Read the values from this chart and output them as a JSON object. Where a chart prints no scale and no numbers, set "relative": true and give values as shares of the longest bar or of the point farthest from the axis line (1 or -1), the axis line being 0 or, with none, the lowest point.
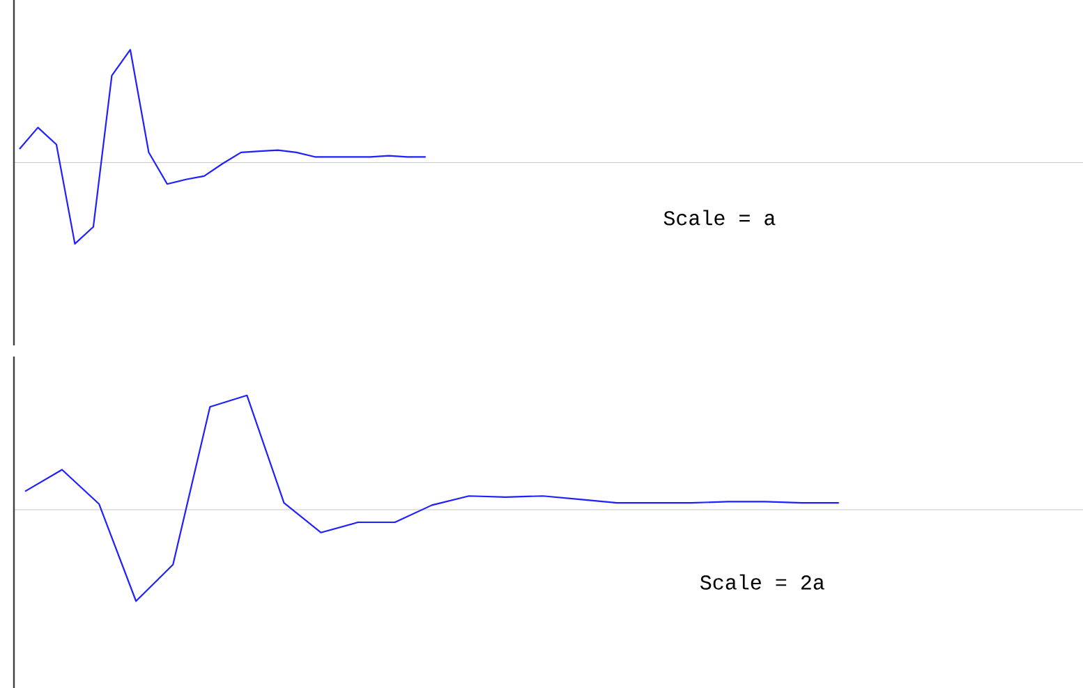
{
  "chart_data": [
    {
      "type": "line",
      "relative": true,
      "categories": [
        null,
        null,
        null,
        null,
        null,
        null,
        null,
        null,
        null,
        null,
        null,
        null,
        null,
        null,
        null,
        null,
        null,
        null,
        null,
        null,
        null,
        null,
        null,
        null,
        null,
        null,
        null,
        null,
        null,
        null,
        null,
        null,
        null,
        null,
        null,
        null,
        null,
        null,
        null,
        null,
        null,
        null,
        null,
        null,
        null,
        null,
        null,
        null,
        null,
        null,
        null,
        null,
        null,
        null,
        null,
        null,
        null,
        null
      ],
      "series": [
        {
          "color": "#1f1fff",
          "values": [
            0.12,
            0.31,
            0.16,
            -0.72,
            -0.57,
            0.77,
            1,
            0.09,
            -0.19,
            -0.15,
            -0.12,
            -0.01,
            0.09,
            0.1,
            0.11,
            0.09,
            0.05,
            0.05,
            0.05,
            0.05,
            0.06,
            0.05,
            0.05,
            null,
            null,
            null,
            null,
            null,
            null,
            null,
            null,
            null,
            null,
            null,
            null,
            null,
            null,
            null,
            null,
            null,
            null,
            null,
            null,
            null,
            null,
            null,
            null,
            null,
            null,
            null,
            null,
            null,
            null,
            null,
            null,
            null,
            null,
            null
          ]
        }
      ],
      "annotations": [
        "Scale = a"
      ]
    },
    {
      "type": "line",
      "relative": true,
      "categories": [
        null,
        null,
        null,
        null,
        null,
        null,
        null,
        null,
        null,
        null,
        null,
        null,
        null,
        null,
        null,
        null,
        null,
        null,
        null,
        null,
        null,
        null,
        null,
        null,
        null,
        null,
        null,
        null,
        null
      ],
      "series": [
        {
          "color": "#1f1fff",
          "values": [
            0.16,
            0.35,
            0.05,
            -0.8,
            -0.48,
            0.9,
            1,
            0.06,
            -0.2,
            -0.11,
            -0.11,
            0.04,
            0.12,
            0.11,
            0.12,
            0.09,
            0.06,
            0.06,
            0.06,
            0.07,
            0.07,
            0.06,
            0.06,
            null,
            null,
            null,
            null,
            null,
            null
          ]
        }
      ],
      "annotations": [
        "Scale = 2a"
      ]
    }
  ]
}
